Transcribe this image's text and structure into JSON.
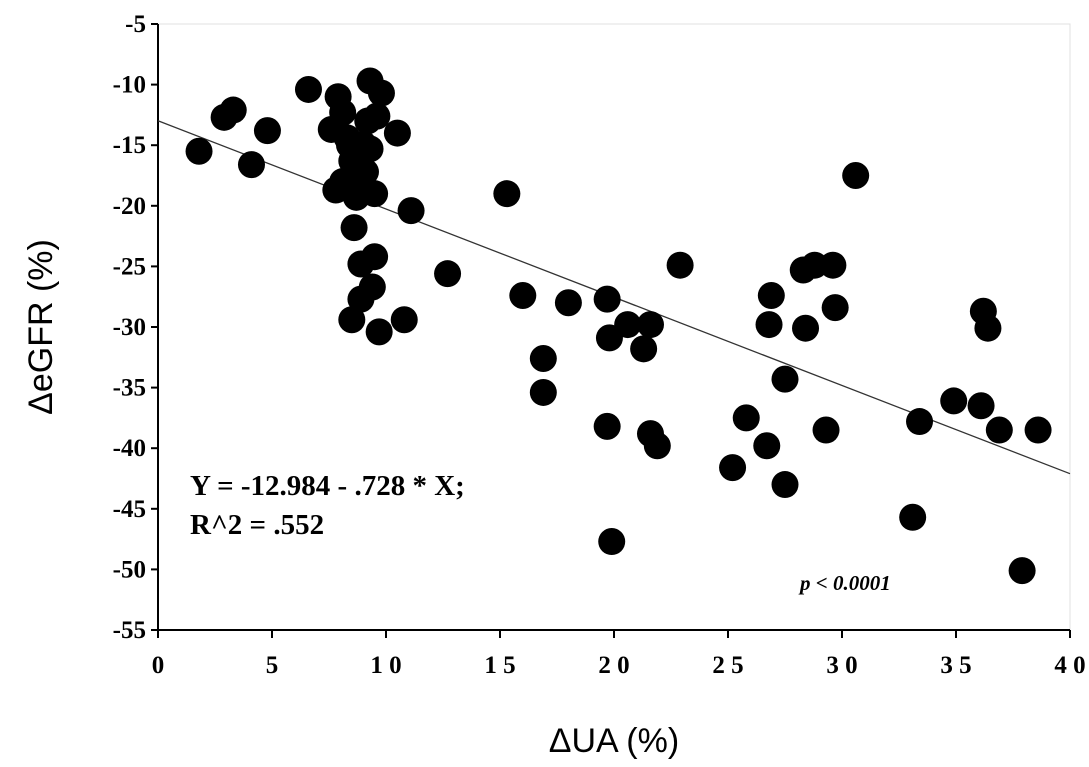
{
  "chart_data": {
    "type": "scatter",
    "xlabel": "ΔUA (%)",
    "ylabel": "ΔeGFR (%)",
    "xlim": [
      0,
      40
    ],
    "ylim": [
      -55,
      -5
    ],
    "xticks": [
      "0",
      "5",
      "10",
      "15",
      "20",
      "25",
      "30",
      "35",
      "40"
    ],
    "yticks": [
      "-5",
      "-10",
      "-15",
      "-20",
      "-25",
      "-30",
      "-35",
      "-40",
      "-45",
      "-50",
      "-55"
    ],
    "annotations": {
      "equation_line1": "Y = -12.984 - .728 * X;",
      "equation_line2": "R^2 = .552",
      "p_value": "p < 0.0001"
    },
    "regression": {
      "intercept": -12.984,
      "slope": -0.728
    },
    "points": [
      {
        "x": 1.8,
        "y": -15.5
      },
      {
        "x": 2.9,
        "y": -12.7
      },
      {
        "x": 3.3,
        "y": -12.1
      },
      {
        "x": 4.1,
        "y": -16.6
      },
      {
        "x": 4.8,
        "y": -13.8
      },
      {
        "x": 6.6,
        "y": -10.4
      },
      {
        "x": 7.6,
        "y": -13.7
      },
      {
        "x": 7.8,
        "y": -18.7
      },
      {
        "x": 7.9,
        "y": -11.0
      },
      {
        "x": 8.1,
        "y": -12.3
      },
      {
        "x": 8.3,
        "y": -14.4
      },
      {
        "x": 8.1,
        "y": -18.0
      },
      {
        "x": 8.4,
        "y": -15.0
      },
      {
        "x": 8.5,
        "y": -16.3
      },
      {
        "x": 8.7,
        "y": -19.3
      },
      {
        "x": 8.6,
        "y": -21.8
      },
      {
        "x": 8.5,
        "y": -29.4
      },
      {
        "x": 8.9,
        "y": -24.8
      },
      {
        "x": 8.9,
        "y": -27.7
      },
      {
        "x": 9.0,
        "y": -14.9
      },
      {
        "x": 9.1,
        "y": -17.2
      },
      {
        "x": 9.0,
        "y": -18.3
      },
      {
        "x": 9.2,
        "y": -13.0
      },
      {
        "x": 9.3,
        "y": -15.3
      },
      {
        "x": 9.3,
        "y": -9.7
      },
      {
        "x": 9.4,
        "y": -26.7
      },
      {
        "x": 9.5,
        "y": -24.2
      },
      {
        "x": 9.5,
        "y": -19.0
      },
      {
        "x": 9.6,
        "y": -12.6
      },
      {
        "x": 9.7,
        "y": -30.4
      },
      {
        "x": 9.8,
        "y": -10.7
      },
      {
        "x": 10.5,
        "y": -14.0
      },
      {
        "x": 10.8,
        "y": -29.4
      },
      {
        "x": 11.1,
        "y": -20.4
      },
      {
        "x": 12.7,
        "y": -25.6
      },
      {
        "x": 15.3,
        "y": -19.0
      },
      {
        "x": 16.0,
        "y": -27.4
      },
      {
        "x": 16.9,
        "y": -32.6
      },
      {
        "x": 16.9,
        "y": -35.4
      },
      {
        "x": 18.0,
        "y": -28.0
      },
      {
        "x": 19.7,
        "y": -27.7
      },
      {
        "x": 19.7,
        "y": -38.2
      },
      {
        "x": 19.8,
        "y": -30.9
      },
      {
        "x": 19.9,
        "y": -47.7
      },
      {
        "x": 20.6,
        "y": -29.8
      },
      {
        "x": 21.3,
        "y": -31.8
      },
      {
        "x": 21.6,
        "y": -29.8
      },
      {
        "x": 21.6,
        "y": -38.8
      },
      {
        "x": 21.9,
        "y": -39.8
      },
      {
        "x": 22.9,
        "y": -24.9
      },
      {
        "x": 25.2,
        "y": -41.6
      },
      {
        "x": 25.8,
        "y": -37.5
      },
      {
        "x": 26.7,
        "y": -39.8
      },
      {
        "x": 26.8,
        "y": -29.8
      },
      {
        "x": 26.9,
        "y": -27.4
      },
      {
        "x": 27.5,
        "y": -34.3
      },
      {
        "x": 27.5,
        "y": -43.0
      },
      {
        "x": 28.3,
        "y": -25.3
      },
      {
        "x": 28.4,
        "y": -30.1
      },
      {
        "x": 28.8,
        "y": -24.9
      },
      {
        "x": 29.3,
        "y": -38.5
      },
      {
        "x": 29.6,
        "y": -24.9
      },
      {
        "x": 29.7,
        "y": -28.4
      },
      {
        "x": 30.6,
        "y": -17.5
      },
      {
        "x": 33.1,
        "y": -45.7
      },
      {
        "x": 33.4,
        "y": -37.8
      },
      {
        "x": 34.9,
        "y": -36.1
      },
      {
        "x": 36.1,
        "y": -36.5
      },
      {
        "x": 36.2,
        "y": -28.7
      },
      {
        "x": 36.4,
        "y": -30.1
      },
      {
        "x": 36.9,
        "y": -38.5
      },
      {
        "x": 37.9,
        "y": -50.1
      },
      {
        "x": 38.6,
        "y": -38.5
      }
    ]
  }
}
